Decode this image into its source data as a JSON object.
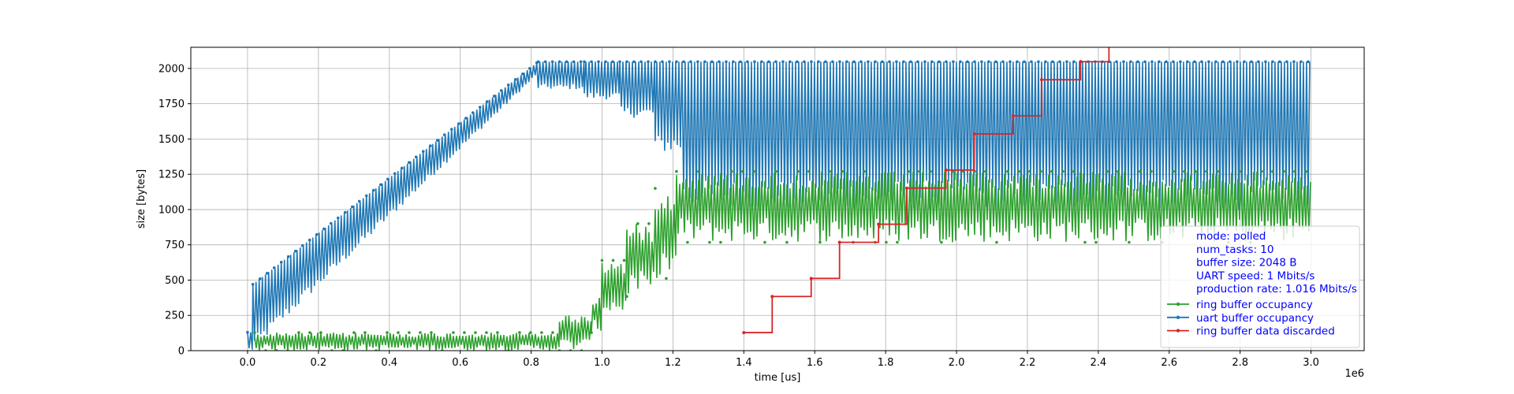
{
  "chart_data": {
    "type": "line",
    "xlabel": "time [us]",
    "ylabel": "size [bytes]",
    "x_offset_label": "1e6",
    "xlim": [
      -160000,
      3150000
    ],
    "ylim": [
      0,
      2150
    ],
    "x_ticks": [
      0,
      200000,
      400000,
      600000,
      800000,
      1000000,
      1200000,
      1400000,
      1600000,
      1800000,
      2000000,
      2200000,
      2400000,
      2600000,
      2800000,
      3000000
    ],
    "x_tick_labels": [
      "0.0",
      "0.2",
      "0.4",
      "0.6",
      "0.8",
      "1.0",
      "1.2",
      "1.4",
      "1.6",
      "1.8",
      "2.0",
      "2.2",
      "2.4",
      "2.6",
      "2.8",
      "3.0"
    ],
    "y_ticks": [
      0,
      250,
      500,
      750,
      1000,
      1250,
      1500,
      1750,
      2000
    ],
    "y_tick_labels": [
      "0",
      "250",
      "500",
      "750",
      "1000",
      "1250",
      "1500",
      "1750",
      "2000"
    ],
    "grid": true,
    "legend_position": "bottom-right",
    "legend_info": [
      "mode: polled",
      "num_tasks: 10",
      "buffer size: 2048 B",
      "UART speed: 1 Mbits/s",
      "production rate: 1.016 Mbits/s"
    ],
    "series": [
      {
        "name": "ring buffer occupancy",
        "color": "#2ca02c",
        "style": "dense oscillation",
        "bands": [
          {
            "x_start": 20000,
            "x_end": 880000,
            "low": 0,
            "high": 128
          },
          {
            "x_start": 880000,
            "x_end": 970000,
            "low": 0,
            "high": 256
          },
          {
            "x_start": 970000,
            "x_end": 1000000,
            "low": 128,
            "high": 384
          },
          {
            "x_start": 1000000,
            "x_end": 1070000,
            "low": 256,
            "high": 640
          },
          {
            "x_start": 1070000,
            "x_end": 1150000,
            "low": 384,
            "high": 900
          },
          {
            "x_start": 1150000,
            "x_end": 1210000,
            "low": 512,
            "high": 1150
          },
          {
            "x_start": 1210000,
            "x_end": 3000000,
            "low": 768,
            "high": 1270
          }
        ]
      },
      {
        "name": "uart buffer occupancy",
        "color": "#1f77b4",
        "style": "dense oscillation",
        "bands": [
          {
            "x_start": 0,
            "x_end": 15000,
            "low": 0,
            "high": 130
          },
          {
            "x_start": 15000,
            "x_end": 820000,
            "low_start": 0,
            "low_end": 1960,
            "high_start": 470,
            "high_end": 2048
          },
          {
            "x_start": 820000,
            "x_end": 950000,
            "low": 1850,
            "high": 2048
          },
          {
            "x_start": 950000,
            "x_end": 1050000,
            "low": 1780,
            "high": 2048
          },
          {
            "x_start": 1050000,
            "x_end": 1150000,
            "low": 1650,
            "high": 2048
          },
          {
            "x_start": 1150000,
            "x_end": 1230000,
            "low": 1400,
            "high": 2048
          },
          {
            "x_start": 1230000,
            "x_end": 3000000,
            "low": 1000,
            "high": 2048
          }
        ]
      },
      {
        "name": "ring buffer data discarded",
        "color": "#d62728",
        "style": "step",
        "x": [
          1400000,
          1480000,
          1590000,
          1670000,
          1780000,
          1860000,
          1970000,
          2050000,
          2160000,
          2240000,
          2350000,
          2430000
        ],
        "y": [
          128,
          384,
          512,
          768,
          896,
          1152,
          1280,
          1536,
          1664,
          1920,
          2048,
          2304
        ]
      }
    ]
  }
}
